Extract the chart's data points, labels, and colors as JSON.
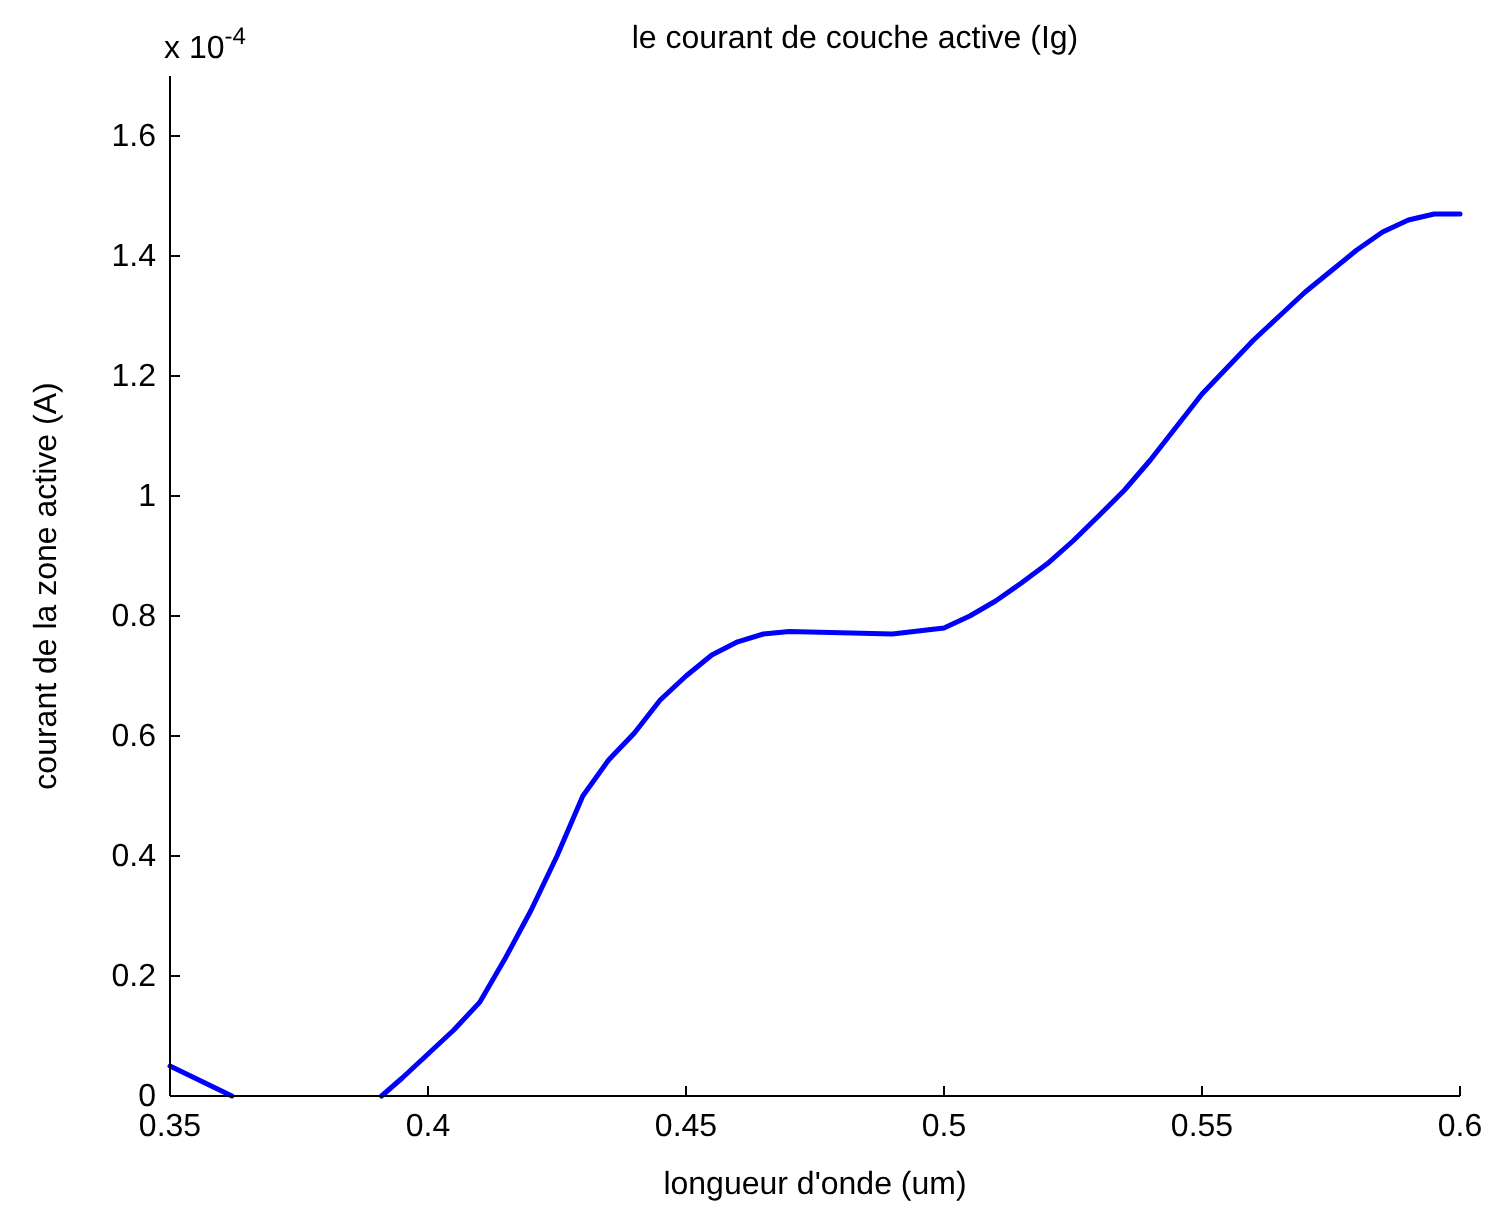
{
  "chart_data": {
    "type": "line",
    "title": "le courant de couche active (Ig)",
    "xlabel": "longueur d'onde (um)",
    "ylabel": "courant de la zone active (A)",
    "annotations": [
      "x 10$^{-4}$"
    ],
    "x": [
      0.35,
      0.356,
      0.362,
      0.376,
      0.391,
      0.395,
      0.4,
      0.405,
      0.41,
      0.415,
      0.42,
      0.425,
      0.43,
      0.435,
      0.44,
      0.445,
      0.45,
      0.455,
      0.46,
      0.465,
      0.47,
      0.48,
      0.49,
      0.5,
      0.505,
      0.51,
      0.515,
      0.52,
      0.525,
      0.53,
      0.535,
      0.54,
      0.545,
      0.55,
      0.555,
      0.56,
      0.565,
      0.57,
      0.575,
      0.58,
      0.585,
      0.59,
      0.595,
      0.6
    ],
    "series": [
      {
        "color": "#0000ff",
        "values": [
          0.05,
          0.025,
          0,
          null,
          0,
          0.03,
          0.07,
          0.11,
          0.156,
          0.23,
          0.31,
          0.4,
          0.5,
          0.56,
          0.605,
          0.66,
          0.7,
          0.735,
          0.757,
          0.77,
          0.774,
          0.772,
          0.77,
          0.78,
          0.8,
          0.825,
          0.855,
          0.887,
          0.925,
          0.967,
          1.01,
          1.06,
          1.115,
          1.17,
          1.215,
          1.26,
          1.3,
          1.34,
          1.375,
          1.41,
          1.44,
          1.46,
          1.47,
          1.47
        ]
      }
    ],
    "xlim": [
      0.35,
      0.6
    ],
    "xticks": [
      0.35,
      0.4,
      0.45,
      0.5,
      0.55,
      0.6
    ],
    "ylim": [
      0,
      1.7
    ],
    "yticks": [
      0,
      0.2,
      0.4,
      0.6,
      0.8,
      1,
      1.2,
      1.4,
      1.6
    ],
    "grid": false,
    "marker": "none",
    "line_style": "solid"
  }
}
